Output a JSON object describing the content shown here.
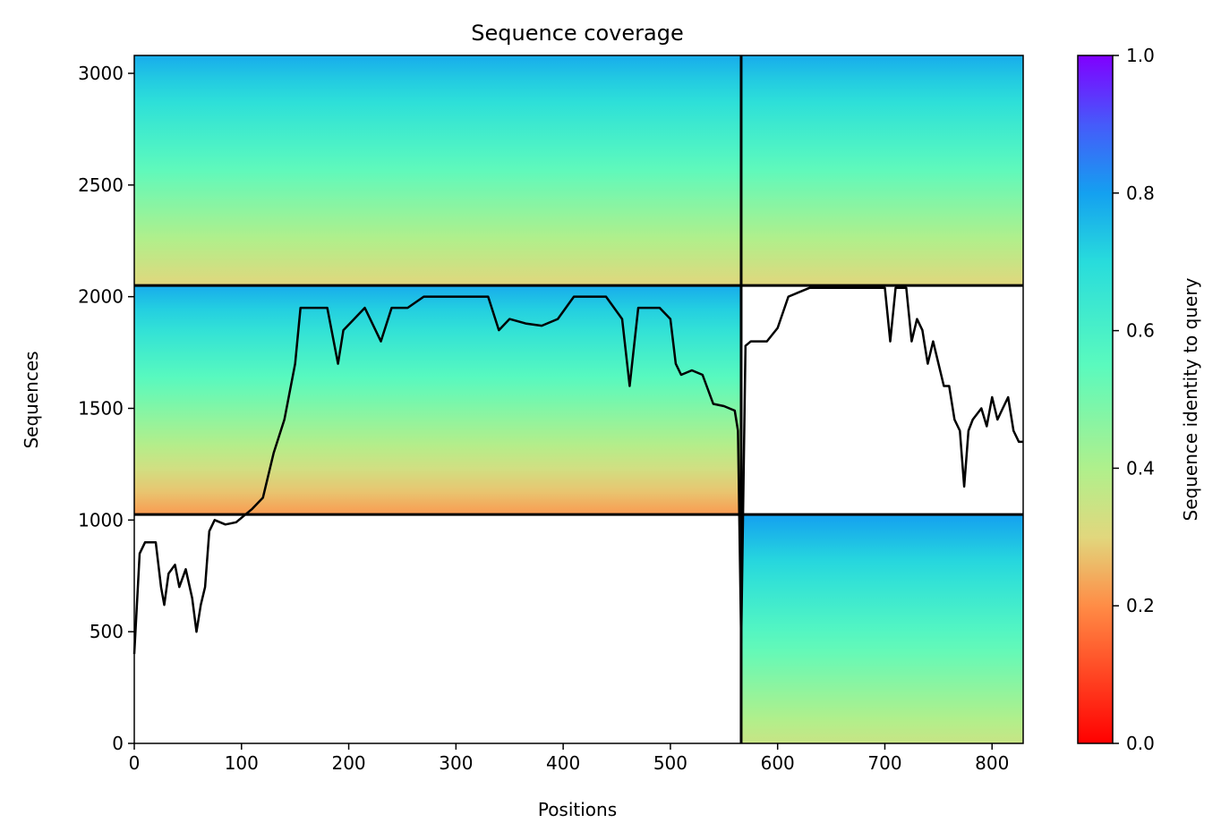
{
  "chart_data": {
    "type": "heatmap",
    "title": "Sequence coverage",
    "xlabel": "Positions",
    "ylabel": "Sequences",
    "xlim": [
      0,
      829
    ],
    "ylim": [
      0,
      3080
    ],
    "x_ticks": [
      0,
      100,
      200,
      300,
      400,
      500,
      600,
      700,
      800
    ],
    "y_ticks": [
      0,
      500,
      1000,
      1500,
      2000,
      2500,
      3000
    ],
    "chain_boundaries_x": [
      566
    ],
    "block_boundaries_y": [
      1025,
      2050
    ],
    "blocks": [
      {
        "x": [
          0,
          566
        ],
        "y": [
          2050,
          3080
        ],
        "id_top": 0.78,
        "id_bottom": 0.3
      },
      {
        "x": [
          566,
          829
        ],
        "y": [
          2050,
          3080
        ],
        "id_top": 0.78,
        "id_bottom": 0.3
      },
      {
        "x": [
          0,
          566
        ],
        "y": [
          1025,
          2050
        ],
        "id_top": 0.78,
        "id_bottom": 0.22
      },
      {
        "x": [
          566,
          829
        ],
        "y": [
          0,
          1025
        ],
        "id_top": 0.8,
        "id_bottom": 0.35
      }
    ],
    "coverage_line": {
      "x": [
        0,
        5,
        10,
        20,
        25,
        28,
        32,
        38,
        42,
        48,
        54,
        58,
        62,
        66,
        70,
        75,
        85,
        95,
        110,
        120,
        130,
        140,
        150,
        155,
        180,
        190,
        195,
        205,
        215,
        230,
        240,
        255,
        270,
        300,
        330,
        340,
        350,
        365,
        380,
        395,
        410,
        440,
        455,
        462,
        470,
        490,
        500,
        505,
        510,
        520,
        530,
        540,
        550,
        560,
        563,
        566,
        570,
        575,
        590,
        600,
        610,
        630,
        650,
        680,
        700,
        705,
        710,
        720,
        725,
        730,
        735,
        740,
        745,
        750,
        755,
        760,
        765,
        770,
        774,
        778,
        782,
        790,
        795,
        800,
        805,
        810,
        815,
        820,
        825,
        829
      ],
      "y": [
        400,
        850,
        900,
        900,
        700,
        620,
        760,
        800,
        700,
        780,
        650,
        500,
        620,
        700,
        950,
        1000,
        980,
        990,
        1050,
        1100,
        1300,
        1450,
        1700,
        1950,
        1950,
        1700,
        1850,
        1900,
        1950,
        1800,
        1950,
        1950,
        2000,
        2000,
        2000,
        1850,
        1900,
        1880,
        1870,
        1900,
        2000,
        2000,
        1900,
        1600,
        1950,
        1950,
        1900,
        1700,
        1650,
        1670,
        1650,
        1520,
        1510,
        1490,
        1400,
        450,
        1780,
        1800,
        1800,
        1860,
        2000,
        2040,
        2040,
        2040,
        2040,
        1800,
        2040,
        2040,
        1800,
        1900,
        1850,
        1700,
        1800,
        1700,
        1600,
        1600,
        1450,
        1400,
        1150,
        1400,
        1450,
        1500,
        1420,
        1550,
        1450,
        1500,
        1550,
        1400,
        1350,
        1350
      ]
    },
    "colorbar": {
      "label": "Sequence identity to query",
      "ticks": [
        0.0,
        0.2,
        0.4,
        0.6,
        0.8,
        1.0
      ],
      "tick_labels": [
        "0.0",
        "0.2",
        "0.4",
        "0.6",
        "0.8",
        "1.0"
      ],
      "colormap": "rainbow_r",
      "range": [
        0,
        1
      ]
    }
  }
}
